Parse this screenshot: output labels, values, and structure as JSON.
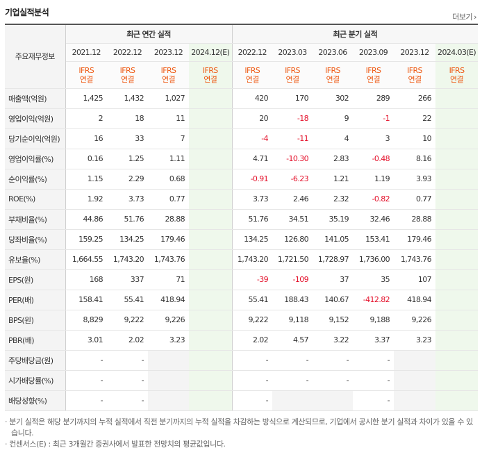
{
  "title": "기업실적분석",
  "more_label": "더보기",
  "header": {
    "row_label": "주요재무정보",
    "annual_group": "최근 연간 실적",
    "quarter_group": "최근 분기 실적",
    "annual_periods": [
      "2021.12",
      "2022.12",
      "2023.12",
      "2024.12(E)"
    ],
    "quarter_periods": [
      "2022.12",
      "2023.03",
      "2023.06",
      "2023.09",
      "2023.12",
      "2024.03(E)"
    ],
    "basis_line1": "IFRS",
    "basis_line2": "연결"
  },
  "rows": [
    {
      "label": "매출액(억원)",
      "annual": [
        "1,425",
        "1,432",
        "1,027",
        ""
      ],
      "quarter": [
        "420",
        "170",
        "302",
        "289",
        "266",
        ""
      ]
    },
    {
      "label": "영업이익(억원)",
      "annual": [
        "2",
        "18",
        "11",
        ""
      ],
      "quarter": [
        "20",
        "-18",
        "9",
        "-1",
        "22",
        ""
      ]
    },
    {
      "label": "당기순이익(억원)",
      "annual": [
        "16",
        "33",
        "7",
        ""
      ],
      "quarter": [
        "-4",
        "-11",
        "4",
        "3",
        "10",
        ""
      ]
    },
    {
      "label": "영업이익률(%)",
      "annual": [
        "0.16",
        "1.25",
        "1.11",
        ""
      ],
      "quarter": [
        "4.71",
        "-10.30",
        "2.83",
        "-0.48",
        "8.16",
        ""
      ]
    },
    {
      "label": "순이익률(%)",
      "annual": [
        "1.15",
        "2.29",
        "0.68",
        ""
      ],
      "quarter": [
        "-0.91",
        "-6.23",
        "1.21",
        "1.19",
        "3.93",
        ""
      ]
    },
    {
      "label": "ROE(%)",
      "annual": [
        "1.92",
        "3.73",
        "0.77",
        ""
      ],
      "quarter": [
        "3.73",
        "2.46",
        "2.32",
        "-0.82",
        "0.77",
        ""
      ]
    },
    {
      "label": "부채비율(%)",
      "annual": [
        "44.86",
        "51.76",
        "28.88",
        ""
      ],
      "quarter": [
        "51.76",
        "34.51",
        "35.19",
        "32.46",
        "28.88",
        ""
      ]
    },
    {
      "label": "당좌비율(%)",
      "annual": [
        "159.25",
        "134.25",
        "179.46",
        ""
      ],
      "quarter": [
        "134.25",
        "126.80",
        "141.05",
        "153.41",
        "179.46",
        ""
      ]
    },
    {
      "label": "유보율(%)",
      "annual": [
        "1,664.55",
        "1,743.20",
        "1,743.76",
        ""
      ],
      "quarter": [
        "1,743.20",
        "1,721.50",
        "1,728.97",
        "1,736.00",
        "1,743.76",
        ""
      ]
    },
    {
      "label": "EPS(원)",
      "annual": [
        "168",
        "337",
        "71",
        ""
      ],
      "quarter": [
        "-39",
        "-109",
        "37",
        "35",
        "107",
        ""
      ]
    },
    {
      "label": "PER(배)",
      "annual": [
        "158.41",
        "55.41",
        "418.94",
        ""
      ],
      "quarter": [
        "55.41",
        "188.43",
        "140.67",
        "-412.82",
        "418.94",
        ""
      ]
    },
    {
      "label": "BPS(원)",
      "annual": [
        "8,829",
        "9,222",
        "9,226",
        ""
      ],
      "quarter": [
        "9,222",
        "9,118",
        "9,152",
        "9,188",
        "9,226",
        ""
      ]
    },
    {
      "label": "PBR(배)",
      "annual": [
        "3.01",
        "2.02",
        "3.23",
        ""
      ],
      "quarter": [
        "2.02",
        "4.57",
        "3.22",
        "3.37",
        "3.23",
        ""
      ]
    },
    {
      "label": "주당배당금(원)",
      "annual": [
        "-",
        "-",
        "",
        ""
      ],
      "quarter": [
        "-",
        "-",
        "-",
        "-",
        "",
        ""
      ]
    },
    {
      "label": "시가배당률(%)",
      "annual": [
        "-",
        "-",
        "",
        ""
      ],
      "quarter": [
        "-",
        "-",
        "-",
        "-",
        "",
        ""
      ]
    },
    {
      "label": "배당성향(%)",
      "annual": [
        "-",
        "-",
        "",
        ""
      ],
      "quarter": [
        "-",
        "",
        "",
        "-",
        "",
        ""
      ]
    }
  ],
  "notes": [
    "· 분기 실적은 해당 분기까지의 누적 실적에서 직전 분기까지의 누적 실적을 차감하는 방식으로 계산되므로, 기업에서 공시한 분기 실적과 차이가 있을 수 있습니다.",
    "· 컨센서스(E) : 최근 3개월간 증권사에서 발표한 전망치의 평균값입니다."
  ],
  "colors": {
    "negative": "#e4102a",
    "basis": "#ee5a14",
    "estimate_bg": "#eff8ec"
  }
}
